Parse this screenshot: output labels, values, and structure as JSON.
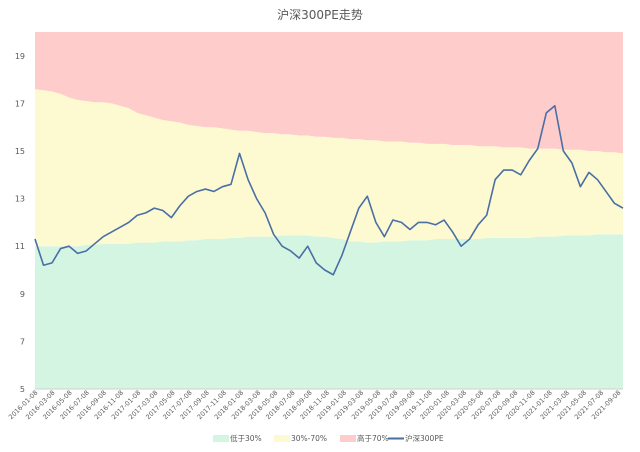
{
  "chart_data": {
    "type": "area",
    "title": "沪深300PE走势",
    "xlabel": "",
    "ylabel": "",
    "ylim": [
      5,
      20
    ],
    "yticks": [
      5,
      7,
      9,
      11,
      13,
      15,
      17,
      19
    ],
    "grid": false,
    "legend_position": "bottom",
    "xtick_labels": [
      "2016-01-08",
      "2016-03-08",
      "2016-05-08",
      "2016-07-08",
      "2016-09-08",
      "2016-11-08",
      "2017-01-08",
      "2017-03-08",
      "2017-05-08",
      "2017-07-08",
      "2017-09-08",
      "2017-11-08",
      "2018-01-08",
      "2018-03-08",
      "2018-05-08",
      "2018-07-08",
      "2018-09-08",
      "2018-11-08",
      "2019-01-08",
      "2019-03-08",
      "2019-05-08",
      "2019-07-08",
      "2019-09-08",
      "2019-11-08",
      "2020-01-08",
      "2020-03-08",
      "2020-05-08",
      "2020-07-08",
      "2020-09-08",
      "2020-11-08",
      "2021-01-08",
      "2021-03-08",
      "2021-05-08",
      "2021-07-08",
      "2021-09-08"
    ],
    "x": [
      "2016-01",
      "2016-02",
      "2016-03",
      "2016-04",
      "2016-05",
      "2016-06",
      "2016-07",
      "2016-08",
      "2016-09",
      "2016-10",
      "2016-11",
      "2016-12",
      "2017-01",
      "2017-02",
      "2017-03",
      "2017-04",
      "2017-05",
      "2017-06",
      "2017-07",
      "2017-08",
      "2017-09",
      "2017-10",
      "2017-11",
      "2017-12",
      "2018-01",
      "2018-02",
      "2018-03",
      "2018-04",
      "2018-05",
      "2018-06",
      "2018-07",
      "2018-08",
      "2018-09",
      "2018-10",
      "2018-11",
      "2018-12",
      "2019-01",
      "2019-02",
      "2019-03",
      "2019-04",
      "2019-05",
      "2019-06",
      "2019-07",
      "2019-08",
      "2019-09",
      "2019-10",
      "2019-11",
      "2019-12",
      "2020-01",
      "2020-02",
      "2020-03",
      "2020-04",
      "2020-05",
      "2020-06",
      "2020-07",
      "2020-08",
      "2020-09",
      "2020-10",
      "2020-11",
      "2020-12",
      "2021-01",
      "2021-02",
      "2021-03",
      "2021-04",
      "2021-05",
      "2021-06",
      "2021-07",
      "2021-08",
      "2021-09",
      "2021-10"
    ],
    "series": [
      {
        "name": "低于30%",
        "color": "#d5f5e3",
        "values": [
          11.0,
          11.0,
          11.0,
          11.0,
          11.0,
          11.0,
          11.05,
          11.05,
          11.1,
          11.1,
          11.1,
          11.1,
          11.15,
          11.15,
          11.15,
          11.2,
          11.2,
          11.2,
          11.25,
          11.25,
          11.3,
          11.3,
          11.3,
          11.35,
          11.35,
          11.4,
          11.4,
          11.4,
          11.4,
          11.45,
          11.45,
          11.45,
          11.45,
          11.4,
          11.4,
          11.35,
          11.3,
          11.2,
          11.2,
          11.15,
          11.15,
          11.2,
          11.2,
          11.2,
          11.25,
          11.25,
          11.25,
          11.3,
          11.3,
          11.3,
          11.3,
          11.3,
          11.3,
          11.35,
          11.35,
          11.35,
          11.35,
          11.35,
          11.35,
          11.4,
          11.4,
          11.4,
          11.45,
          11.45,
          11.45,
          11.45,
          11.5,
          11.5,
          11.5,
          11.5
        ]
      },
      {
        "name": "30%-70%",
        "color": "#fdfad2",
        "values": [
          17.6,
          17.55,
          17.5,
          17.4,
          17.25,
          17.15,
          17.1,
          17.05,
          17.05,
          17.0,
          16.9,
          16.8,
          16.6,
          16.5,
          16.4,
          16.3,
          16.25,
          16.2,
          16.1,
          16.05,
          16.0,
          16.0,
          15.95,
          15.9,
          15.85,
          15.85,
          15.8,
          15.75,
          15.75,
          15.7,
          15.7,
          15.65,
          15.65,
          15.6,
          15.6,
          15.55,
          15.55,
          15.5,
          15.5,
          15.45,
          15.45,
          15.4,
          15.4,
          15.4,
          15.35,
          15.35,
          15.3,
          15.3,
          15.3,
          15.25,
          15.25,
          15.25,
          15.2,
          15.2,
          15.2,
          15.15,
          15.15,
          15.15,
          15.1,
          15.1,
          15.1,
          15.1,
          15.05,
          15.05,
          15.05,
          15.0,
          15.0,
          14.95,
          14.95,
          14.9
        ]
      },
      {
        "name": "高于70%",
        "color": "#ffcccc",
        "values": [
          20,
          20,
          20,
          20,
          20,
          20,
          20,
          20,
          20,
          20,
          20,
          20,
          20,
          20,
          20,
          20,
          20,
          20,
          20,
          20,
          20,
          20,
          20,
          20,
          20,
          20,
          20,
          20,
          20,
          20,
          20,
          20,
          20,
          20,
          20,
          20,
          20,
          20,
          20,
          20,
          20,
          20,
          20,
          20,
          20,
          20,
          20,
          20,
          20,
          20,
          20,
          20,
          20,
          20,
          20,
          20,
          20,
          20,
          20,
          20,
          20,
          20,
          20,
          20,
          20,
          20,
          20,
          20,
          20,
          20
        ]
      },
      {
        "name": "沪深300PE",
        "color": "#4a6fa5",
        "values": [
          11.3,
          10.2,
          10.3,
          10.9,
          11.0,
          10.7,
          10.8,
          11.1,
          11.4,
          11.6,
          11.8,
          12.0,
          12.3,
          12.4,
          12.6,
          12.5,
          12.2,
          12.7,
          13.1,
          13.3,
          13.4,
          13.3,
          13.5,
          13.6,
          14.9,
          13.8,
          13.0,
          12.4,
          11.5,
          11.0,
          10.8,
          10.5,
          11.0,
          10.3,
          10.0,
          9.8,
          10.6,
          11.6,
          12.6,
          13.1,
          12.0,
          11.4,
          12.1,
          12.0,
          11.7,
          12.0,
          12.0,
          11.9,
          12.1,
          11.6,
          11.0,
          11.3,
          11.9,
          12.3,
          13.8,
          14.2,
          14.2,
          14.0,
          14.6,
          15.1,
          16.6,
          16.9,
          15.0,
          14.5,
          13.5,
          14.1,
          13.8,
          13.3,
          12.8,
          12.6
        ]
      }
    ]
  }
}
